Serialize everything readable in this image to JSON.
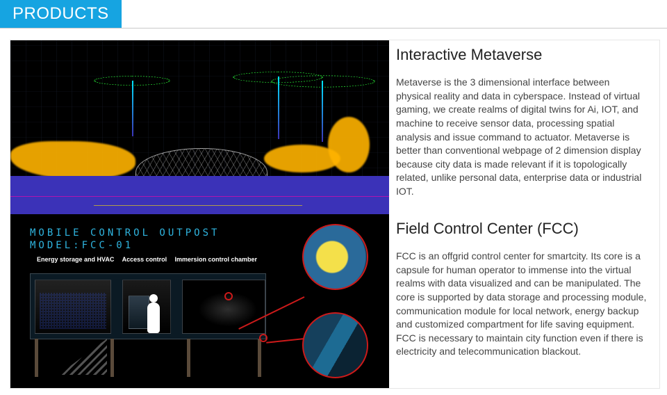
{
  "colors": {
    "accent": "#16a4e1",
    "border": "#e6e6e6",
    "text": "#333333",
    "callout": "#cc1a1a",
    "neon_green": "#2bff3a",
    "neon_purple": "#3b32b8"
  },
  "header": {
    "tab_label": "PRODUCTS"
  },
  "products": [
    {
      "title": "Interactive Metaverse",
      "description": "Metaverse is the 3 dimensional interface between physical reality and data in cyberspace. Instead of virtual gaming, we create realms of digital twins for Ai, IOT, and machine to receive sensor data, processing spatial analysis and issue command to actuator. Metaverse is better than conventional webpage of 2 dimension display because city data is made relevant if it is topologically related, unlike personal data, enterprise data  or industrial IOT.",
      "thumb": {
        "type": "render_3d_city_scan",
        "bg": "#000000"
      }
    },
    {
      "title": "Field Control Center (FCC)",
      "description": "FCC is an offgrid control center for smartcity. Its core is a capsule for human operator to immense into the virtual realms with data visualized and can be manipulated.  The core is supported by data storage and processing module, communication module for local network, energy backup and customized compartment for life saving equipment.  FCC is necessary to maintain city function even if there is electricity and telecommunication blackout.",
      "thumb": {
        "type": "technical_cutaway",
        "bg": "#000000",
        "overlay_title_line1": "MOBILE CONTROL OUTPOST",
        "overlay_title_line2": "MODEL:FCC-01",
        "labels": [
          "Energy storage and HVAC",
          "Access control",
          "Immersion control chamber"
        ]
      }
    }
  ]
}
